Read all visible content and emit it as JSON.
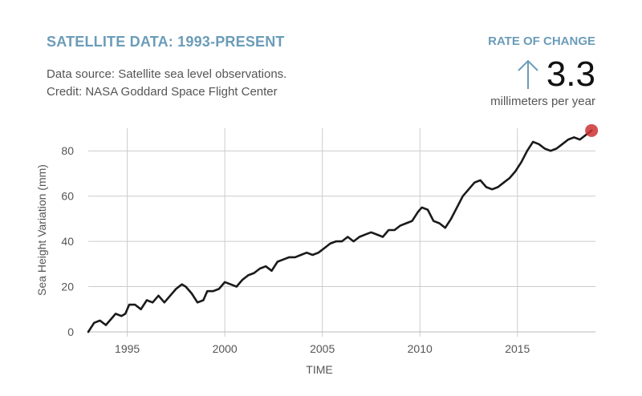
{
  "header": {
    "title": "SATELLITE DATA: 1993-PRESENT",
    "source_line1": "Data source: Satellite sea level observations.",
    "source_line2": "Credit: NASA Goddard Space Flight Center"
  },
  "rate": {
    "label": "RATE OF CHANGE",
    "value": "3.3",
    "unit": "millimeters per year",
    "direction_icon": "arrow-up-icon"
  },
  "colors": {
    "accent": "#6b9cb8",
    "line": "#1a1a1a",
    "grid": "#cccccc",
    "endpoint": "#cc3333"
  },
  "chart_data": {
    "type": "line",
    "title": "",
    "xlabel": "TIME",
    "ylabel": "Sea Height Variation (mm)",
    "xlim": [
      1993,
      2019
    ],
    "ylim": [
      0,
      90
    ],
    "xticks": [
      1995,
      2000,
      2005,
      2010,
      2015
    ],
    "yticks": [
      0,
      20,
      40,
      60,
      80
    ],
    "grid": true,
    "series": [
      {
        "values": [
          [
            1993.0,
            0
          ],
          [
            1993.3,
            4
          ],
          [
            1993.6,
            5
          ],
          [
            1993.9,
            3
          ],
          [
            1994.2,
            6
          ],
          [
            1994.4,
            8
          ],
          [
            1994.7,
            7
          ],
          [
            1994.9,
            8
          ],
          [
            1995.1,
            12
          ],
          [
            1995.4,
            12
          ],
          [
            1995.7,
            10
          ],
          [
            1996.0,
            14
          ],
          [
            1996.3,
            13
          ],
          [
            1996.6,
            16
          ],
          [
            1996.9,
            13
          ],
          [
            1997.2,
            16
          ],
          [
            1997.5,
            19
          ],
          [
            1997.8,
            21
          ],
          [
            1998.0,
            20
          ],
          [
            1998.3,
            17
          ],
          [
            1998.6,
            13
          ],
          [
            1998.9,
            14
          ],
          [
            1999.1,
            18
          ],
          [
            1999.4,
            18
          ],
          [
            1999.7,
            19
          ],
          [
            2000.0,
            22
          ],
          [
            2000.3,
            21
          ],
          [
            2000.6,
            20
          ],
          [
            2000.9,
            23
          ],
          [
            2001.2,
            25
          ],
          [
            2001.5,
            26
          ],
          [
            2001.8,
            28
          ],
          [
            2002.1,
            29
          ],
          [
            2002.4,
            27
          ],
          [
            2002.7,
            31
          ],
          [
            2003.0,
            32
          ],
          [
            2003.3,
            33
          ],
          [
            2003.6,
            33
          ],
          [
            2003.9,
            34
          ],
          [
            2004.2,
            35
          ],
          [
            2004.5,
            34
          ],
          [
            2004.8,
            35
          ],
          [
            2005.1,
            37
          ],
          [
            2005.4,
            39
          ],
          [
            2005.7,
            40
          ],
          [
            2006.0,
            40
          ],
          [
            2006.3,
            42
          ],
          [
            2006.6,
            40
          ],
          [
            2006.9,
            42
          ],
          [
            2007.2,
            43
          ],
          [
            2007.5,
            44
          ],
          [
            2007.8,
            43
          ],
          [
            2008.1,
            42
          ],
          [
            2008.4,
            45
          ],
          [
            2008.7,
            45
          ],
          [
            2009.0,
            47
          ],
          [
            2009.3,
            48
          ],
          [
            2009.6,
            49
          ],
          [
            2009.9,
            53
          ],
          [
            2010.1,
            55
          ],
          [
            2010.4,
            54
          ],
          [
            2010.7,
            49
          ],
          [
            2011.0,
            48
          ],
          [
            2011.3,
            46
          ],
          [
            2011.6,
            50
          ],
          [
            2011.9,
            55
          ],
          [
            2012.2,
            60
          ],
          [
            2012.5,
            63
          ],
          [
            2012.8,
            66
          ],
          [
            2013.1,
            67
          ],
          [
            2013.4,
            64
          ],
          [
            2013.7,
            63
          ],
          [
            2014.0,
            64
          ],
          [
            2014.3,
            66
          ],
          [
            2014.6,
            68
          ],
          [
            2014.9,
            71
          ],
          [
            2015.2,
            75
          ],
          [
            2015.5,
            80
          ],
          [
            2015.8,
            84
          ],
          [
            2016.1,
            83
          ],
          [
            2016.4,
            81
          ],
          [
            2016.7,
            80
          ],
          [
            2017.0,
            81
          ],
          [
            2017.3,
            83
          ],
          [
            2017.6,
            85
          ],
          [
            2017.9,
            86
          ],
          [
            2018.2,
            85
          ],
          [
            2018.5,
            87
          ],
          [
            2018.8,
            89
          ]
        ]
      }
    ]
  }
}
